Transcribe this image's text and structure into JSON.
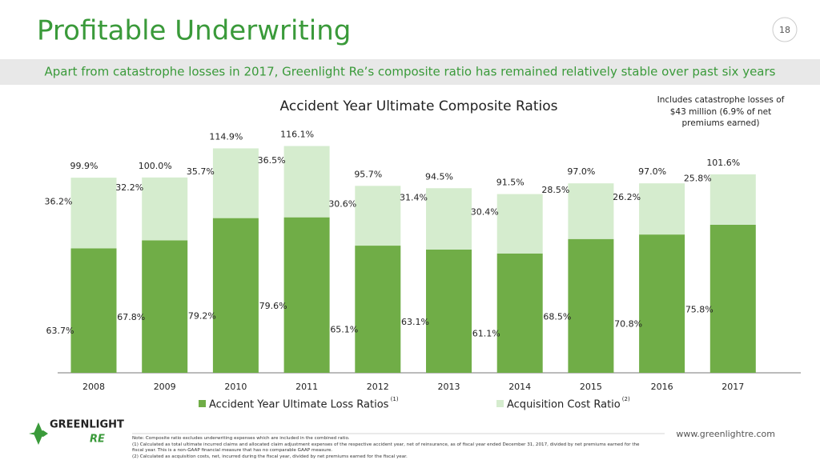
{
  "chart_data": {
    "type": "stacked_bar",
    "title": "Profitable Underwriting",
    "page_number": "18",
    "subtitle": "Apart from catastrophe losses in 2017, Greenlight Re’s composite ratio has remained relatively stable over past six years",
    "chart_title": "Accident Year Ultimate Composite Ratios",
    "annotation": "Includes catastrophe losses of $43 million (6.9% of net premiums earned)",
    "categories": [
      "2008",
      "2009",
      "2010",
      "2011",
      "2012",
      "2013",
      "2014",
      "2015",
      "2016",
      "2017"
    ],
    "series": [
      {
        "name": "Accident Year Ultimate Loss Ratios",
        "footnote": "(1)",
        "color": "#70ad47",
        "values": [
          63.7,
          67.8,
          79.2,
          79.6,
          65.1,
          63.1,
          61.1,
          68.5,
          70.8,
          75.8
        ],
        "value_labels": [
          "63.7%",
          "67.8%",
          "79.2%",
          "79.6%",
          "65.1%",
          "63.1%",
          "61.1%",
          "68.5%",
          "70.8%",
          "75.8%"
        ]
      },
      {
        "name": "Acquisition Cost Ratio",
        "footnote": "(2)",
        "color": "#d5ecce",
        "values": [
          36.2,
          32.2,
          35.7,
          36.5,
          30.6,
          31.4,
          30.4,
          28.5,
          26.2,
          25.8
        ],
        "value_labels": [
          "36.2%",
          "32.2%",
          "35.7%",
          "36.5%",
          "30.6%",
          "31.4%",
          "30.4%",
          "28.5%",
          "26.2%",
          "25.8%"
        ]
      }
    ],
    "totals": {
      "values": [
        99.9,
        100.0,
        114.9,
        116.1,
        95.7,
        94.5,
        91.5,
        97.0,
        97.0,
        101.6
      ],
      "value_labels": [
        "99.9%",
        "100.0%",
        "114.9%",
        "116.1%",
        "95.7%",
        "94.5%",
        "91.5%",
        "97.0%",
        "97.0%",
        "101.6%"
      ]
    },
    "ylim": [
      0,
      120
    ],
    "logo": [
      "GREENLIGHT",
      "RE"
    ],
    "url": "www.greenlightre.com",
    "notes": [
      "Note: Composite ratio excludes underwriting expenses which are included in the combined ratio.",
      "(1) Calculated as total ultimate incurred claims and allocated claim adjustment expenses of the respective accident year, net of reinsurance, as of fiscal year ended December 31, 2017, divided by net premiums earned for the fiscal year.  This is a non-GAAP financial measure that has no comparable GAAP measure.",
      "(2) Calculated as acquisition costs, net, incurred during the fiscal year, divided by net premiums earned for the fiscal year."
    ]
  }
}
